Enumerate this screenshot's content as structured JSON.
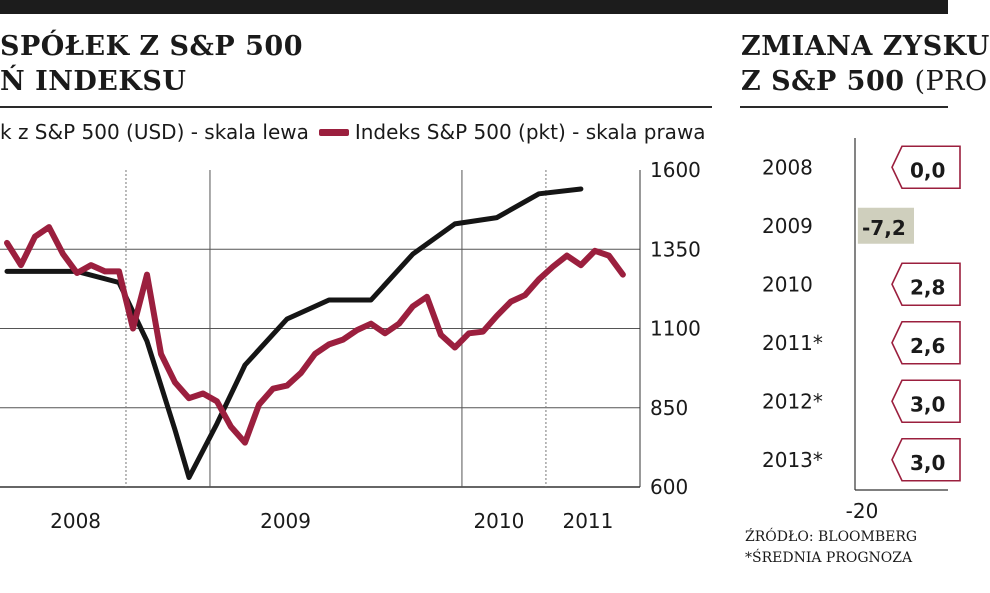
{
  "colors": {
    "line_black": "#151515",
    "line_crimson": "#9b1f3e",
    "badge_border": "#9b1f3e",
    "negative_bar": "#cfcfbd",
    "grid": "#555555"
  },
  "left_panel": {
    "title_line1": "SPÓŁEK Z S&P 500",
    "title_line2": "Ń INDEKSU",
    "legend_black": "k z S&P 500 (USD) - skala lewa",
    "legend_crimson": "Indeks S&P 500 (pkt) - skala prawa"
  },
  "right_panel": {
    "title_line1": "ZMIANA ZYSKU",
    "title_line2_bold": "Z S&P 500",
    "title_line2_muted": "(PRO",
    "source_line1": "ŹRÓDŁO: BLOOMBERG",
    "source_line2": "*ŚREDNIA PROGNOZA"
  },
  "chart_data": [
    {
      "type": "line",
      "title": "",
      "x_axis": {
        "tick_labels": [
          "2008",
          "2009",
          "2010",
          "2011"
        ]
      },
      "y_right": {
        "ticks": [
          600,
          850,
          1100,
          1350,
          1600
        ],
        "ylim": [
          600,
          1600
        ]
      },
      "grid": true,
      "series": [
        {
          "name": "k z S&P 500 (USD) - skala lewa",
          "color": "#151515",
          "axis": "left (tick labels not visible)",
          "points": [
            [
              "2007-10",
              1280
            ],
            [
              "2008-03",
              1280
            ],
            [
              "2008-06",
              1245
            ],
            [
              "2008-08",
              1060
            ],
            [
              "2008-10",
              780
            ],
            [
              "2008-11",
              630
            ],
            [
              "2009-01",
              800
            ],
            [
              "2009-03",
              985
            ],
            [
              "2009-06",
              1130
            ],
            [
              "2009-09",
              1190
            ],
            [
              "2009-12",
              1190
            ],
            [
              "2010-03",
              1335
            ],
            [
              "2010-06",
              1430
            ],
            [
              "2010-09",
              1450
            ],
            [
              "2010-12",
              1525
            ],
            [
              "2011-03",
              1540
            ]
          ]
        },
        {
          "name": "Indeks S&P 500 (pkt) - skala prawa",
          "color": "#9b1f3e",
          "axis": "right",
          "points": [
            [
              "2007-10",
              1370
            ],
            [
              "2007-11",
              1300
            ],
            [
              "2007-12",
              1390
            ],
            [
              "2008-01",
              1420
            ],
            [
              "2008-02",
              1335
            ],
            [
              "2008-03",
              1275
            ],
            [
              "2008-04",
              1300
            ],
            [
              "2008-05",
              1280
            ],
            [
              "2008-06",
              1280
            ],
            [
              "2008-07",
              1100
            ],
            [
              "2008-08",
              1270
            ],
            [
              "2008-09",
              1020
            ],
            [
              "2008-10",
              930
            ],
            [
              "2008-11",
              880
            ],
            [
              "2008-12",
              895
            ],
            [
              "2009-01",
              870
            ],
            [
              "2009-02",
              790
            ],
            [
              "2009-03",
              740
            ],
            [
              "2009-04",
              860
            ],
            [
              "2009-05",
              910
            ],
            [
              "2009-06",
              920
            ],
            [
              "2009-07",
              960
            ],
            [
              "2009-08",
              1020
            ],
            [
              "2009-09",
              1050
            ],
            [
              "2009-10",
              1065
            ],
            [
              "2009-11",
              1095
            ],
            [
              "2009-12",
              1115
            ],
            [
              "2010-01",
              1085
            ],
            [
              "2010-02",
              1115
            ],
            [
              "2010-03",
              1170
            ],
            [
              "2010-04",
              1200
            ],
            [
              "2010-05",
              1080
            ],
            [
              "2010-06",
              1040
            ],
            [
              "2010-07",
              1085
            ],
            [
              "2010-08",
              1090
            ],
            [
              "2010-09",
              1140
            ],
            [
              "2010-10",
              1185
            ],
            [
              "2010-11",
              1205
            ],
            [
              "2010-12",
              1255
            ],
            [
              "2011-01",
              1295
            ],
            [
              "2011-02",
              1330
            ],
            [
              "2011-03",
              1300
            ],
            [
              "2011-04",
              1345
            ],
            [
              "2011-05",
              1330
            ],
            [
              "2011-06",
              1270
            ]
          ]
        }
      ]
    },
    {
      "type": "bar",
      "orientation": "horizontal",
      "title": "ZMIANA ZYSKU Z S&P 500 (PRO",
      "x_axis": {
        "tick_labels": [
          "-20"
        ]
      },
      "categories": [
        "2008",
        "2009",
        "2010",
        "2011*",
        "2012*",
        "2013*"
      ],
      "value_labels": [
        "0,0",
        "-7,2",
        "2,8",
        "2,6",
        "3,0",
        "3,0"
      ],
      "values": [
        0.0,
        -7.2,
        2.8,
        2.6,
        3.0,
        3.0
      ]
    }
  ]
}
